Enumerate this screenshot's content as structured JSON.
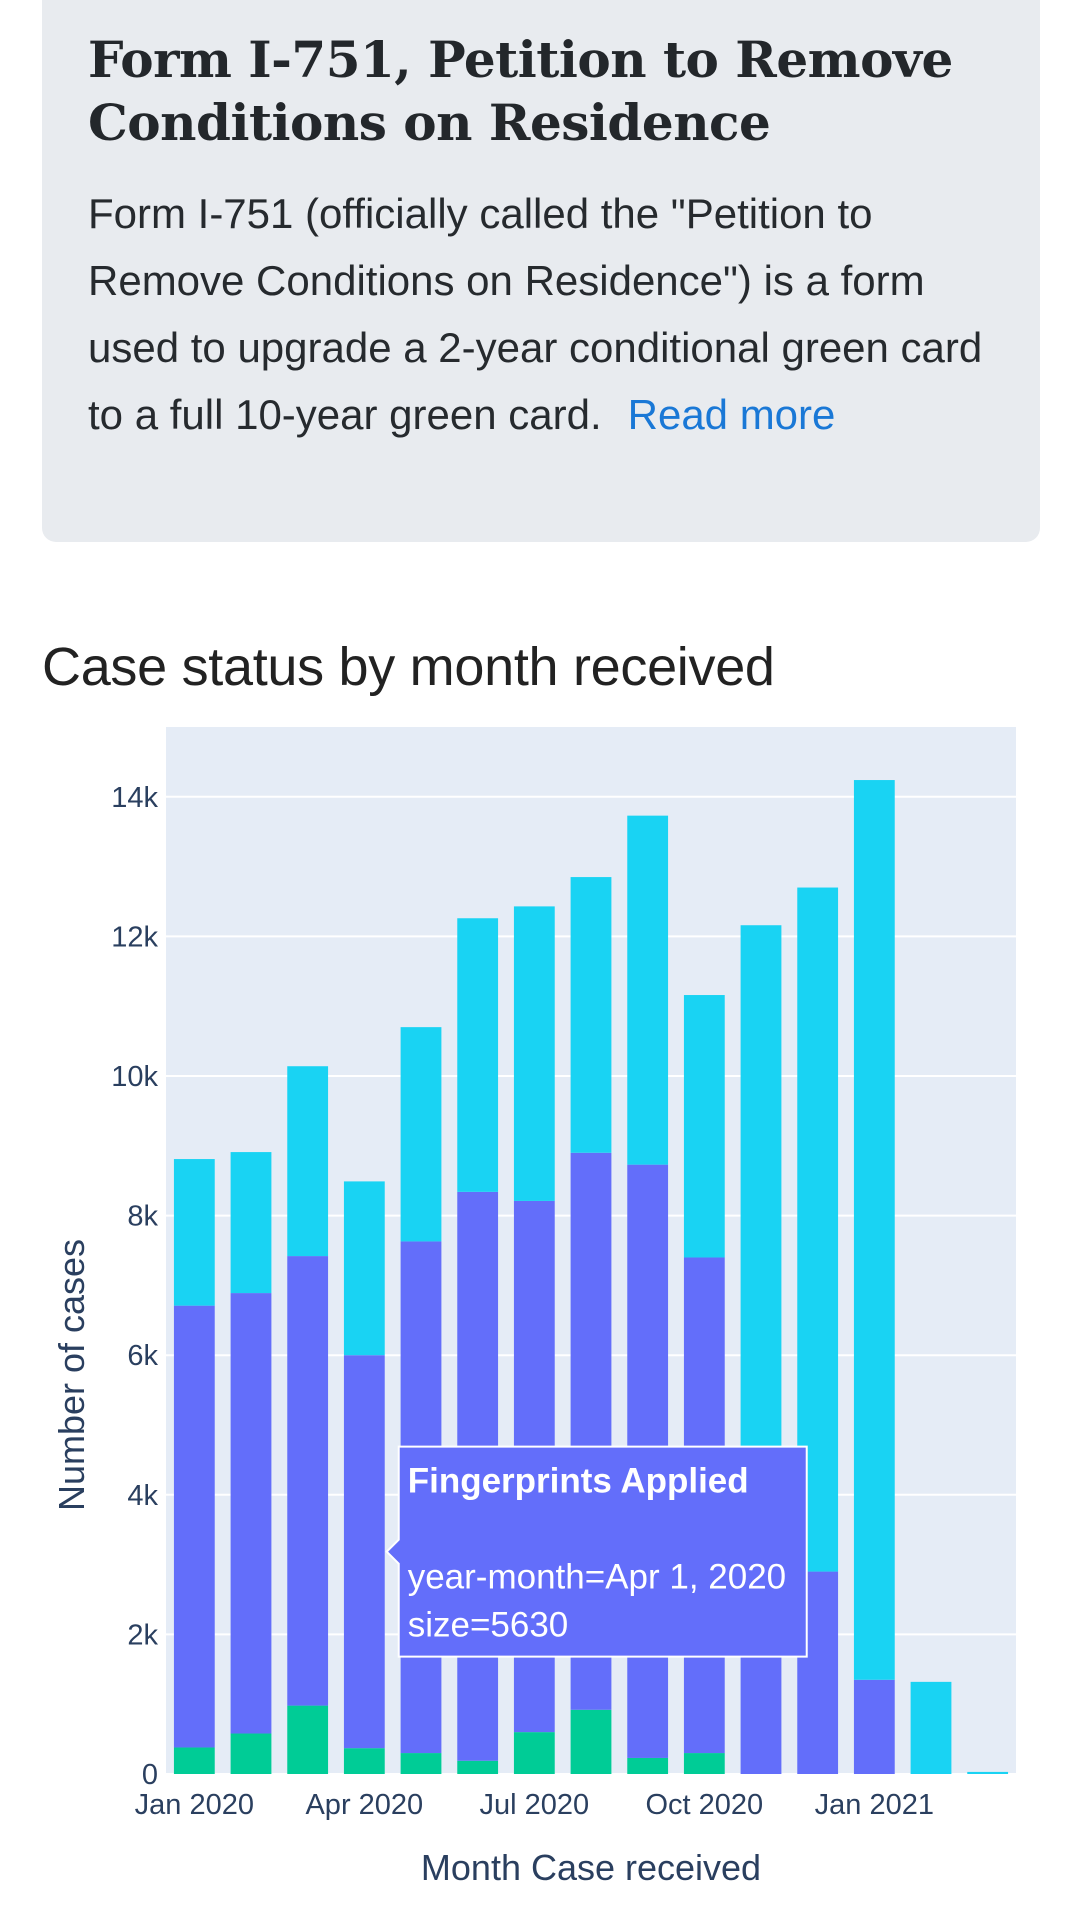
{
  "card": {
    "title": "Form I-751, Petition to Remove Conditions on Residence",
    "description": "Form I-751 (officially called the \"Petition to Remove Conditions on Residence\") is a form used to upgrade a 2-year conditional green card to a full 10-year green card.",
    "read_more": "Read more"
  },
  "section": {
    "title": "Case status by month received"
  },
  "chart_data": {
    "type": "bar",
    "stacked": true,
    "xlabel": "Month Case received",
    "ylabel": "Number of cases",
    "ylim": [
      0,
      15000
    ],
    "yticks": [
      0,
      2000,
      4000,
      6000,
      8000,
      10000,
      12000,
      14000
    ],
    "ytick_labels": [
      "0",
      "2k",
      "4k",
      "6k",
      "8k",
      "10k",
      "12k",
      "14k"
    ],
    "categories": [
      "Jan 2020",
      "Feb 2020",
      "Mar 2020",
      "Apr 2020",
      "May 2020",
      "Jun 2020",
      "Jul 2020",
      "Aug 2020",
      "Sep 2020",
      "Oct 2020",
      "Nov 2020",
      "Dec 2020",
      "Jan 2021",
      "Feb 2021",
      "Mar 2021"
    ],
    "xtick_labels": [
      {
        "index": 0,
        "label": "Jan 2020"
      },
      {
        "index": 3,
        "label": "Apr 2020"
      },
      {
        "index": 6,
        "label": "Jul 2020"
      },
      {
        "index": 9,
        "label": "Oct 2020"
      },
      {
        "index": 12,
        "label": "Jan 2021"
      }
    ],
    "series": [
      {
        "color": "#00cc96",
        "values": [
          380,
          580,
          980,
          370,
          300,
          190,
          600,
          920,
          230,
          300,
          0,
          0,
          0,
          0,
          0
        ]
      },
      {
        "color": "#636efa",
        "values": [
          6330,
          6310,
          6440,
          5630,
          7330,
          8150,
          7610,
          7980,
          8500,
          7100,
          4400,
          2900,
          1350,
          0,
          0
        ]
      },
      {
        "color": "#19d3f3",
        "values": [
          2100,
          2020,
          2720,
          2490,
          3070,
          3920,
          4220,
          3950,
          5000,
          3760,
          7760,
          9800,
          12890,
          1320,
          30
        ]
      }
    ],
    "tooltip": {
      "title": "Fingerprints Applied",
      "line1": "year-month=Apr 1, 2020",
      "line2": "size=5630",
      "bg": "#636efa",
      "target_index": 3
    },
    "colors": {
      "plot_bg": "#e5ecf6",
      "grid": "#ffffff"
    }
  }
}
